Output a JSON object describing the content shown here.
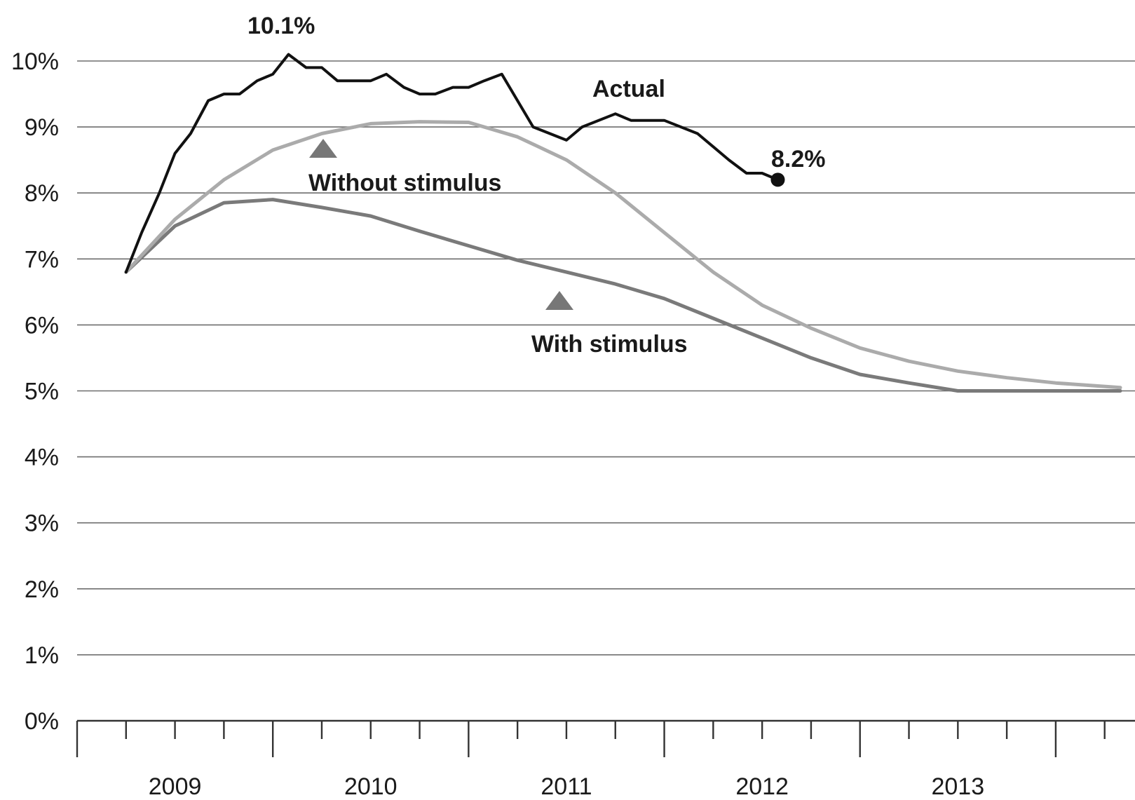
{
  "chart_data": {
    "type": "line",
    "title": "",
    "xlabel": "",
    "ylabel": "",
    "ylim": [
      0,
      10
    ],
    "y_ticks": [
      "0%",
      "1%",
      "2%",
      "3%",
      "4%",
      "5%",
      "6%",
      "7%",
      "8%",
      "9%",
      "10%"
    ],
    "x_ticks": [
      "2009",
      "2010",
      "2011",
      "2012",
      "2013"
    ],
    "grid": true,
    "series": [
      {
        "name": "Actual",
        "color": "#111111",
        "points": [
          [
            2008.87,
            6.8
          ],
          [
            2008.95,
            7.4
          ],
          [
            2009.04,
            8.0
          ],
          [
            2009.12,
            8.6
          ],
          [
            2009.2,
            8.9
          ],
          [
            2009.29,
            9.4
          ],
          [
            2009.37,
            9.5
          ],
          [
            2009.45,
            9.5
          ],
          [
            2009.54,
            9.7
          ],
          [
            2009.62,
            9.8
          ],
          [
            2009.7,
            10.1
          ],
          [
            2009.79,
            9.9
          ],
          [
            2009.87,
            9.9
          ],
          [
            2009.95,
            9.7
          ],
          [
            2010.04,
            9.7
          ],
          [
            2010.12,
            9.7
          ],
          [
            2010.2,
            9.8
          ],
          [
            2010.29,
            9.6
          ],
          [
            2010.37,
            9.5
          ],
          [
            2010.45,
            9.5
          ],
          [
            2010.54,
            9.6
          ],
          [
            2010.62,
            9.6
          ],
          [
            2010.7,
            9.7
          ],
          [
            2010.79,
            9.8
          ],
          [
            2010.95,
            9.0
          ],
          [
            2011.12,
            8.8
          ],
          [
            2011.2,
            9.0
          ],
          [
            2011.37,
            9.2
          ],
          [
            2011.45,
            9.1
          ],
          [
            2011.62,
            9.1
          ],
          [
            2011.79,
            8.9
          ],
          [
            2011.95,
            8.5
          ],
          [
            2012.04,
            8.3
          ],
          [
            2012.12,
            8.3
          ],
          [
            2012.2,
            8.2
          ]
        ]
      },
      {
        "name": "Without stimulus",
        "color": "#ababab",
        "points": [
          [
            2008.87,
            6.8
          ],
          [
            2009.12,
            7.6
          ],
          [
            2009.37,
            8.2
          ],
          [
            2009.62,
            8.65
          ],
          [
            2009.87,
            8.9
          ],
          [
            2010.12,
            9.05
          ],
          [
            2010.37,
            9.08
          ],
          [
            2010.62,
            9.07
          ],
          [
            2010.87,
            8.85
          ],
          [
            2011.12,
            8.5
          ],
          [
            2011.37,
            8.0
          ],
          [
            2011.62,
            7.4
          ],
          [
            2011.87,
            6.8
          ],
          [
            2012.12,
            6.3
          ],
          [
            2012.37,
            5.95
          ],
          [
            2012.62,
            5.65
          ],
          [
            2012.87,
            5.45
          ],
          [
            2013.12,
            5.3
          ],
          [
            2013.37,
            5.2
          ],
          [
            2013.62,
            5.12
          ],
          [
            2013.95,
            5.05
          ]
        ]
      },
      {
        "name": "With stimulus",
        "color": "#7a7a7a",
        "points": [
          [
            2008.87,
            6.8
          ],
          [
            2009.12,
            7.5
          ],
          [
            2009.37,
            7.85
          ],
          [
            2009.62,
            7.9
          ],
          [
            2009.87,
            7.78
          ],
          [
            2010.12,
            7.65
          ],
          [
            2010.37,
            7.42
          ],
          [
            2010.62,
            7.2
          ],
          [
            2010.87,
            6.98
          ],
          [
            2011.12,
            6.8
          ],
          [
            2011.37,
            6.62
          ],
          [
            2011.62,
            6.4
          ],
          [
            2011.87,
            6.1
          ],
          [
            2012.12,
            5.8
          ],
          [
            2012.37,
            5.5
          ],
          [
            2012.62,
            5.25
          ],
          [
            2012.87,
            5.12
          ],
          [
            2013.12,
            5.0
          ],
          [
            2013.37,
            5.0
          ],
          [
            2013.62,
            5.0
          ],
          [
            2013.95,
            5.0
          ]
        ]
      }
    ],
    "annotations": {
      "peak_label": "10.1%",
      "end_label": "8.2%",
      "actual_label": "Actual",
      "without_label": "Without stimulus",
      "with_label": "With stimulus"
    },
    "marker_color": "#777777"
  }
}
